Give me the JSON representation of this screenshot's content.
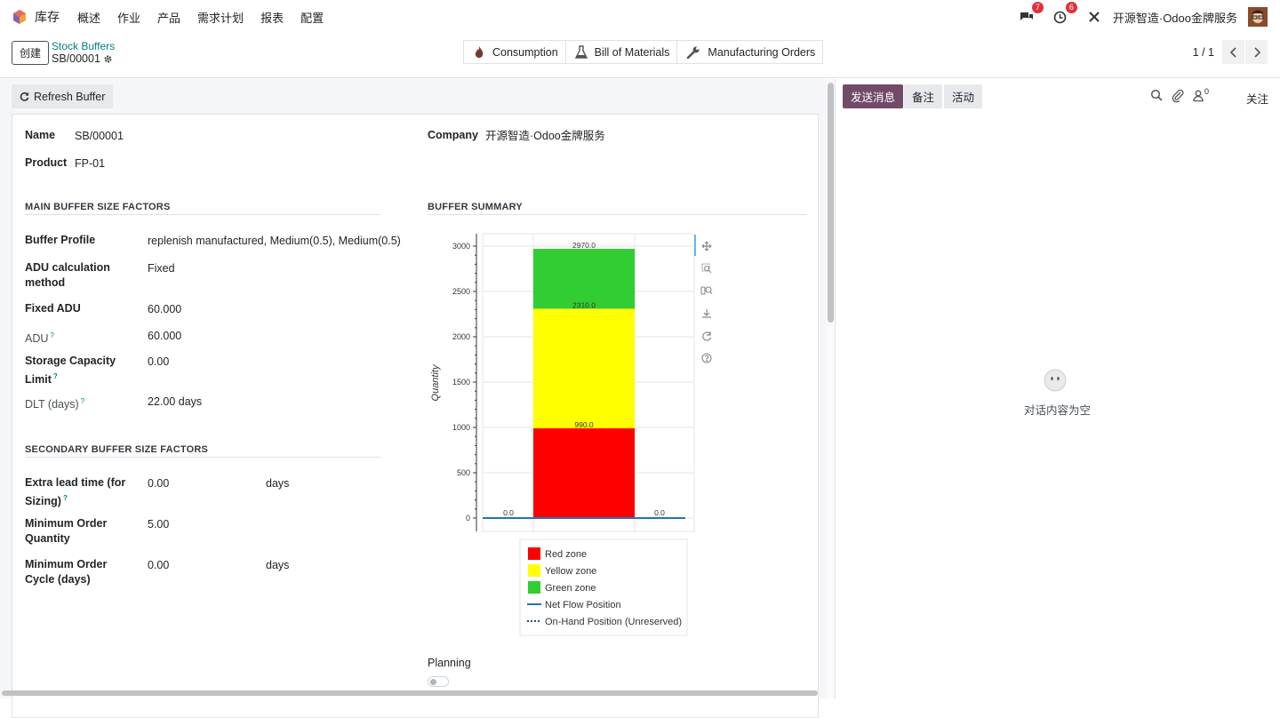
{
  "topnav": {
    "app_name": "库存",
    "menu": [
      "概述",
      "作业",
      "产品",
      "需求计划",
      "报表",
      "配置"
    ],
    "messages_count": "7",
    "activities_count": "6",
    "company": "开源智造·Odoo金牌服务"
  },
  "control": {
    "create_label": "创建",
    "breadcrumb": "Stock Buffers",
    "record": "SB/00001",
    "smart_buttons": [
      "Consumption",
      "Bill of Materials",
      "Manufacturing Orders"
    ],
    "pager": "1 / 1"
  },
  "form": {
    "refresh_label": "Refresh Buffer",
    "name_label": "Name",
    "name_value": "SB/00001",
    "product_label": "Product",
    "product_value": "FP-01",
    "company_label": "Company",
    "company_value": "开源智造·Odoo金牌服务",
    "main_section": "MAIN BUFFER SIZE FACTORS",
    "buffer_profile_label": "Buffer Profile",
    "buffer_profile_value": "replenish manufactured, Medium(0.5), Medium(0.5)",
    "adu_method_label": "ADU calculation method",
    "adu_method_value": "Fixed",
    "fixed_adu_label": "Fixed ADU",
    "fixed_adu_value": "60.000",
    "adu_label": "ADU",
    "adu_value": "60.000",
    "storage_label": "Storage Capacity Limit",
    "storage_value": "0.00",
    "dlt_label": "DLT (days)",
    "dlt_value": "22.00 days",
    "secondary_section": "SECONDARY BUFFER SIZE FACTORS",
    "extra_lead_label": "Extra lead time (for Sizing)",
    "extra_lead_value": "0.00",
    "extra_lead_unit": "days",
    "moq_label": "Minimum Order Quantity",
    "moq_value": "5.00",
    "moc_label": "Minimum Order Cycle (days)",
    "moc_value": "0.00",
    "moc_unit": "days",
    "summary_section": "BUFFER SUMMARY",
    "planning_label": "Planning",
    "help_mark": "?"
  },
  "chatter": {
    "send_label": "发送消息",
    "note_label": "备注",
    "activity_label": "活动",
    "followers_count": "0",
    "follow_label": "关注",
    "empty_text": "对话内容为空"
  },
  "chart_data": {
    "type": "bar",
    "ylabel": "Quantity",
    "ylim": [
      0,
      3100
    ],
    "yticks": [
      0,
      500,
      1000,
      1500,
      2000,
      2500,
      3000
    ],
    "stacked_zones": [
      {
        "name": "Red zone",
        "from": 0,
        "to": 990,
        "color": "#ff0000"
      },
      {
        "name": "Yellow zone",
        "from": 990,
        "to": 2310,
        "color": "#ffff00"
      },
      {
        "name": "Green zone",
        "from": 2310,
        "to": 2970,
        "color": "#32cd32"
      }
    ],
    "zone_labels": [
      "990.0",
      "2310.0",
      "2970.0"
    ],
    "net_flow_position": 0.0,
    "net_flow_labels": [
      "0.0",
      "0.0"
    ],
    "legend": [
      "Red zone",
      "Yellow zone",
      "Green zone",
      "Net Flow Position",
      "On-Hand Position (Unreserved)"
    ],
    "line_color": "#1f77b4"
  }
}
